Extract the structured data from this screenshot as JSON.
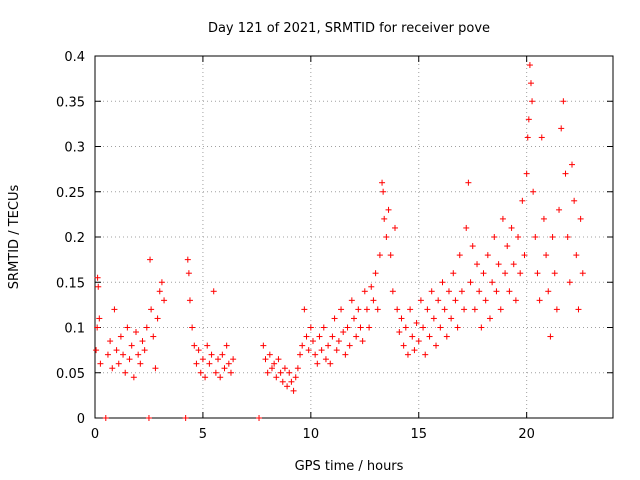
{
  "chart_data": {
    "type": "scatter",
    "title": "Day 121 of 2021, SRMTID for receiver pove",
    "xlabel": "GPS time / hours",
    "ylabel": "SRMTID / TECUs",
    "xlim": [
      0,
      24
    ],
    "ylim": [
      0,
      0.4
    ],
    "xticks": [
      0,
      5,
      10,
      15,
      20
    ],
    "xtick_labels": [
      "0",
      "5",
      "10",
      "15",
      "20"
    ],
    "yticks": [
      0,
      0.05,
      0.1,
      0.15,
      0.2,
      0.25,
      0.3,
      0.35,
      0.4
    ],
    "ytick_labels": [
      "0",
      "0.05",
      "0.1",
      "0.15",
      "0.2",
      "0.25",
      "0.3",
      "0.35",
      "0.4"
    ],
    "grid": true,
    "marker": "+",
    "color": "#ff0000",
    "series": [
      {
        "name": "SRMTID",
        "points": [
          [
            0.05,
            0.075
          ],
          [
            0.1,
            0.1
          ],
          [
            0.12,
            0.155
          ],
          [
            0.15,
            0.145
          ],
          [
            0.2,
            0.11
          ],
          [
            0.25,
            0.06
          ],
          [
            0.5,
            0.0
          ],
          [
            0.6,
            0.07
          ],
          [
            0.7,
            0.085
          ],
          [
            0.8,
            0.055
          ],
          [
            0.9,
            0.12
          ],
          [
            1.0,
            0.075
          ],
          [
            1.1,
            0.06
          ],
          [
            1.2,
            0.09
          ],
          [
            1.3,
            0.07
          ],
          [
            1.4,
            0.05
          ],
          [
            1.5,
            0.1
          ],
          [
            1.6,
            0.065
          ],
          [
            1.7,
            0.08
          ],
          [
            1.8,
            0.045
          ],
          [
            1.9,
            0.095
          ],
          [
            2.0,
            0.07
          ],
          [
            2.1,
            0.06
          ],
          [
            2.2,
            0.085
          ],
          [
            2.3,
            0.075
          ],
          [
            2.4,
            0.1
          ],
          [
            2.5,
            0.0
          ],
          [
            2.55,
            0.175
          ],
          [
            2.6,
            0.12
          ],
          [
            2.7,
            0.09
          ],
          [
            2.8,
            0.055
          ],
          [
            2.9,
            0.11
          ],
          [
            3.0,
            0.14
          ],
          [
            3.1,
            0.15
          ],
          [
            3.2,
            0.13
          ],
          [
            4.2,
            0.0
          ],
          [
            4.3,
            0.175
          ],
          [
            4.35,
            0.16
          ],
          [
            4.4,
            0.13
          ],
          [
            4.5,
            0.1
          ],
          [
            4.6,
            0.08
          ],
          [
            4.7,
            0.06
          ],
          [
            4.8,
            0.075
          ],
          [
            4.9,
            0.05
          ],
          [
            5.0,
            0.065
          ],
          [
            5.1,
            0.045
          ],
          [
            5.2,
            0.08
          ],
          [
            5.3,
            0.06
          ],
          [
            5.4,
            0.07
          ],
          [
            5.5,
            0.14
          ],
          [
            5.6,
            0.05
          ],
          [
            5.7,
            0.065
          ],
          [
            5.8,
            0.045
          ],
          [
            5.9,
            0.07
          ],
          [
            6.0,
            0.055
          ],
          [
            6.1,
            0.08
          ],
          [
            6.2,
            0.06
          ],
          [
            6.3,
            0.05
          ],
          [
            6.4,
            0.065
          ],
          [
            7.6,
            0.0
          ],
          [
            7.8,
            0.08
          ],
          [
            7.9,
            0.065
          ],
          [
            8.0,
            0.05
          ],
          [
            8.1,
            0.07
          ],
          [
            8.2,
            0.055
          ],
          [
            8.3,
            0.06
          ],
          [
            8.4,
            0.045
          ],
          [
            8.5,
            0.065
          ],
          [
            8.6,
            0.05
          ],
          [
            8.7,
            0.04
          ],
          [
            8.8,
            0.055
          ],
          [
            8.9,
            0.035
          ],
          [
            9.0,
            0.05
          ],
          [
            9.1,
            0.04
          ],
          [
            9.2,
            0.03
          ],
          [
            9.3,
            0.045
          ],
          [
            9.4,
            0.055
          ],
          [
            9.5,
            0.07
          ],
          [
            9.6,
            0.08
          ],
          [
            9.7,
            0.12
          ],
          [
            9.8,
            0.09
          ],
          [
            9.9,
            0.075
          ],
          [
            10.0,
            0.1
          ],
          [
            10.1,
            0.085
          ],
          [
            10.2,
            0.07
          ],
          [
            10.3,
            0.06
          ],
          [
            10.4,
            0.09
          ],
          [
            10.5,
            0.075
          ],
          [
            10.6,
            0.1
          ],
          [
            10.7,
            0.065
          ],
          [
            10.8,
            0.08
          ],
          [
            10.9,
            0.06
          ],
          [
            11.0,
            0.09
          ],
          [
            11.1,
            0.11
          ],
          [
            11.2,
            0.075
          ],
          [
            11.3,
            0.085
          ],
          [
            11.4,
            0.12
          ],
          [
            11.5,
            0.095
          ],
          [
            11.6,
            0.07
          ],
          [
            11.7,
            0.1
          ],
          [
            11.8,
            0.08
          ],
          [
            11.9,
            0.13
          ],
          [
            12.0,
            0.11
          ],
          [
            12.1,
            0.09
          ],
          [
            12.2,
            0.12
          ],
          [
            12.3,
            0.1
          ],
          [
            12.4,
            0.085
          ],
          [
            12.5,
            0.14
          ],
          [
            12.6,
            0.12
          ],
          [
            12.7,
            0.1
          ],
          [
            12.8,
            0.145
          ],
          [
            12.9,
            0.13
          ],
          [
            13.0,
            0.16
          ],
          [
            13.1,
            0.12
          ],
          [
            13.2,
            0.18
          ],
          [
            13.3,
            0.26
          ],
          [
            13.35,
            0.25
          ],
          [
            13.4,
            0.22
          ],
          [
            13.5,
            0.2
          ],
          [
            13.6,
            0.23
          ],
          [
            13.7,
            0.18
          ],
          [
            13.8,
            0.14
          ],
          [
            13.9,
            0.21
          ],
          [
            14.0,
            0.12
          ],
          [
            14.1,
            0.095
          ],
          [
            14.2,
            0.11
          ],
          [
            14.3,
            0.08
          ],
          [
            14.4,
            0.1
          ],
          [
            14.5,
            0.07
          ],
          [
            14.6,
            0.12
          ],
          [
            14.7,
            0.09
          ],
          [
            14.8,
            0.075
          ],
          [
            14.9,
            0.105
          ],
          [
            15.0,
            0.085
          ],
          [
            15.1,
            0.13
          ],
          [
            15.2,
            0.1
          ],
          [
            15.3,
            0.07
          ],
          [
            15.4,
            0.12
          ],
          [
            15.5,
            0.09
          ],
          [
            15.6,
            0.14
          ],
          [
            15.7,
            0.11
          ],
          [
            15.8,
            0.08
          ],
          [
            15.9,
            0.13
          ],
          [
            16.0,
            0.1
          ],
          [
            16.1,
            0.15
          ],
          [
            16.2,
            0.12
          ],
          [
            16.3,
            0.09
          ],
          [
            16.4,
            0.14
          ],
          [
            16.5,
            0.11
          ],
          [
            16.6,
            0.16
          ],
          [
            16.7,
            0.13
          ],
          [
            16.8,
            0.1
          ],
          [
            16.9,
            0.18
          ],
          [
            17.0,
            0.14
          ],
          [
            17.1,
            0.12
          ],
          [
            17.2,
            0.21
          ],
          [
            17.3,
            0.26
          ],
          [
            17.4,
            0.15
          ],
          [
            17.5,
            0.19
          ],
          [
            17.6,
            0.12
          ],
          [
            17.7,
            0.17
          ],
          [
            17.8,
            0.14
          ],
          [
            17.9,
            0.1
          ],
          [
            18.0,
            0.16
          ],
          [
            18.1,
            0.13
          ],
          [
            18.2,
            0.18
          ],
          [
            18.3,
            0.11
          ],
          [
            18.4,
            0.15
          ],
          [
            18.5,
            0.2
          ],
          [
            18.6,
            0.14
          ],
          [
            18.7,
            0.17
          ],
          [
            18.8,
            0.12
          ],
          [
            18.9,
            0.22
          ],
          [
            19.0,
            0.16
          ],
          [
            19.1,
            0.19
          ],
          [
            19.2,
            0.14
          ],
          [
            19.3,
            0.21
          ],
          [
            19.4,
            0.17
          ],
          [
            19.5,
            0.13
          ],
          [
            19.6,
            0.2
          ],
          [
            19.7,
            0.16
          ],
          [
            19.8,
            0.24
          ],
          [
            19.9,
            0.18
          ],
          [
            20.0,
            0.27
          ],
          [
            20.05,
            0.31
          ],
          [
            20.1,
            0.33
          ],
          [
            20.15,
            0.39
          ],
          [
            20.2,
            0.37
          ],
          [
            20.25,
            0.35
          ],
          [
            20.3,
            0.25
          ],
          [
            20.4,
            0.2
          ],
          [
            20.5,
            0.16
          ],
          [
            20.6,
            0.13
          ],
          [
            20.7,
            0.31
          ],
          [
            20.8,
            0.22
          ],
          [
            20.9,
            0.18
          ],
          [
            21.0,
            0.14
          ],
          [
            21.1,
            0.09
          ],
          [
            21.2,
            0.2
          ],
          [
            21.3,
            0.16
          ],
          [
            21.4,
            0.12
          ],
          [
            21.5,
            0.23
          ],
          [
            21.6,
            0.32
          ],
          [
            21.7,
            0.35
          ],
          [
            21.8,
            0.27
          ],
          [
            21.9,
            0.2
          ],
          [
            22.0,
            0.15
          ],
          [
            22.1,
            0.28
          ],
          [
            22.2,
            0.24
          ],
          [
            22.3,
            0.18
          ],
          [
            22.4,
            0.12
          ],
          [
            22.5,
            0.22
          ],
          [
            22.6,
            0.16
          ]
        ]
      }
    ]
  }
}
